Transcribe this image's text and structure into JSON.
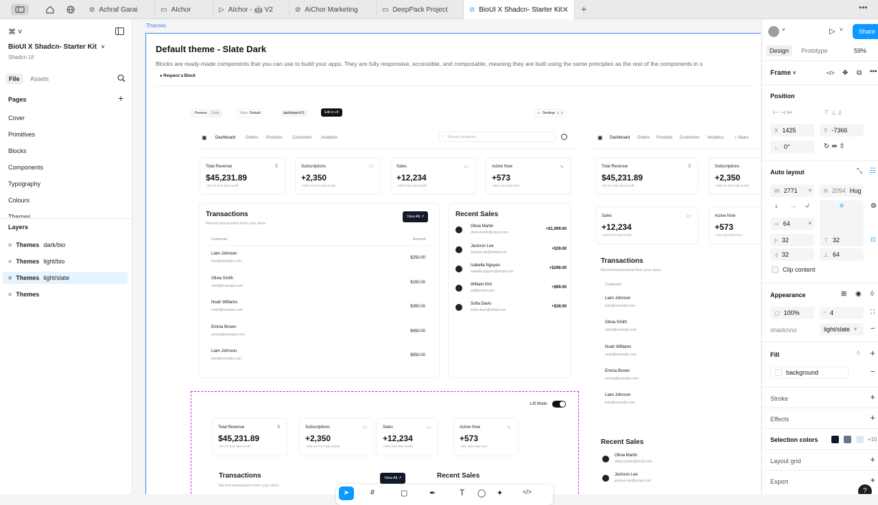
{
  "tabs": [
    {
      "label": "Achraf Garai"
    },
    {
      "label": "AIchor"
    },
    {
      "label": "AIchor - 🤖 V2"
    },
    {
      "label": "AiChor Marketing"
    },
    {
      "label": "DeepPack Project"
    },
    {
      "label": "BioUI X Shadcn- Starter Kit",
      "active": true
    }
  ],
  "left": {
    "file_title": "BioUI X Shadcn- Starter Kit",
    "file_sub": "Shadcn UI",
    "tab_file": "File",
    "tab_assets": "Assets",
    "pages_heading": "Pages",
    "pages": [
      "Cover",
      "Primitives",
      "Blocks",
      "Components",
      "Typography",
      "Colours",
      "Themes"
    ],
    "layers_heading": "Layers",
    "layers": [
      {
        "name": "Themes",
        "sub": "dark/bio"
      },
      {
        "name": "Themes",
        "sub": "light/bio"
      },
      {
        "name": "Themes",
        "sub": "light/slate",
        "selected": true
      },
      {
        "name": "Themes",
        "sub": ""
      }
    ]
  },
  "canvas": {
    "frame_label": "Themes",
    "title": "Default theme - Slate Dark",
    "description": "Blocks are ready-made components that you can use to build your apps. They are fully responsive, accessible, and composable, meaning they are built using the same principles as the rest of the components in s",
    "request_block": "Request a Block",
    "topbar": {
      "preview": "Preview",
      "code": "Code",
      "style_label": "Style:",
      "style_value": "Default",
      "block_id": "dashboard-01",
      "edit_in": "Edit in",
      "desktop": "Desktop"
    },
    "nav": [
      "Dashboard",
      "Orders",
      "Products",
      "Customers",
      "Analytics"
    ],
    "search_placeholder": "Search products...",
    "kpis": [
      {
        "title": "Total Revenue",
        "value": "$45,231.89",
        "sub": "+20.1% from last month",
        "icon": "$"
      },
      {
        "title": "Subscriptions",
        "value": "+2,350",
        "sub": "+180.1% from last month",
        "icon": "👥"
      },
      {
        "title": "Sales",
        "value": "+12,234",
        "sub": "+19% from last month",
        "icon": "▭"
      },
      {
        "title": "Active Now",
        "value": "+573",
        "sub": "+201 since last hour",
        "icon": "∿"
      }
    ],
    "transactions": {
      "title": "Transactions",
      "subtitle": "Recent transactions from your store.",
      "view_all": "View All",
      "col_customer": "Customer",
      "col_amount": "Amount",
      "rows": [
        {
          "name": "Liam Johnson",
          "email": "liam@example.com",
          "amount": "$250.00"
        },
        {
          "name": "Olivia Smith",
          "email": "olivia@example.com",
          "amount": "$150.00"
        },
        {
          "name": "Noah Williams",
          "email": "noah@example.com",
          "amount": "$350.00"
        },
        {
          "name": "Emma Brown",
          "email": "emma@example.com",
          "amount": "$450.00"
        },
        {
          "name": "Liam Johnson",
          "email": "liam@example.com",
          "amount": "$550.00"
        }
      ]
    },
    "recent_sales": {
      "title": "Recent Sales",
      "rows": [
        {
          "name": "Olivia Martin",
          "email": "olivia.martin@email.com",
          "amount": "+$1,999.00"
        },
        {
          "name": "Jackson Lee",
          "email": "jackson.lee@email.com",
          "amount": "+$39.00"
        },
        {
          "name": "Isabella Nguyen",
          "email": "isabella.nguyen@email.com",
          "amount": "+$299.00"
        },
        {
          "name": "William Kim",
          "email": "will@email.com",
          "amount": "+$99.00"
        },
        {
          "name": "Sofia Davis",
          "email": "sofia.davis@email.com",
          "amount": "+$39.00"
        }
      ]
    },
    "lift_mode": "Lift Mode",
    "nav2_extra": "Searc"
  },
  "right": {
    "tab_design": "Design",
    "tab_prototype": "Prototype",
    "zoom": "59%",
    "share": "Share",
    "frame": "Frame",
    "position": "Position",
    "x": "1425",
    "y": "-7366",
    "rotation": "0°",
    "auto_layout": "Auto layout",
    "w": "2771",
    "h": "2094",
    "h_mode": "Hug",
    "gap": "64",
    "pad_l": "32",
    "pad_t": "32",
    "pad_r": "32",
    "pad_b": "64",
    "clip": "Clip content",
    "appearance": "Appearance",
    "opacity": "100%",
    "radius": "4",
    "var_collection": "shadcn/ui",
    "var_mode": "light/slate",
    "fill": "Fill",
    "fill_value": "background",
    "stroke": "Stroke",
    "effects": "Effects",
    "selection_colors": "Selection colors",
    "selection_more": "+10",
    "layout_grid": "Layout grid",
    "export": "Export"
  },
  "colors": {
    "accent": "#0d99ff",
    "frame_blue": "#3b82f6",
    "dark": "#0f172a"
  }
}
